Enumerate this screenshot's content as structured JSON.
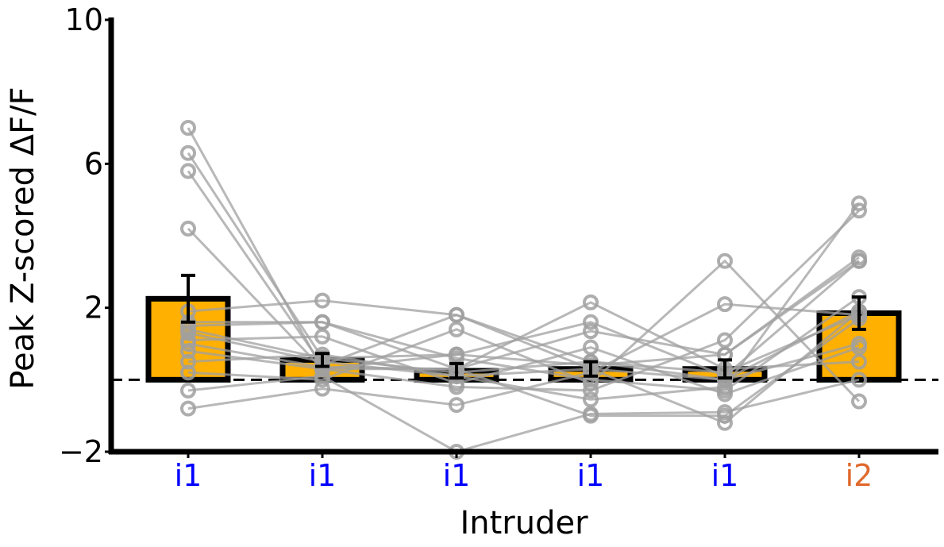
{
  "chart_data": {
    "type": "bar",
    "xlabel": "Intruder",
    "ylabel": "Peak Z-scored ΔF/F",
    "ylim": [
      -2,
      10
    ],
    "yticks": [
      -2,
      2,
      6,
      10
    ],
    "ytick_labels": [
      "−2",
      "2",
      "6",
      "10"
    ],
    "categories": [
      "i1",
      "i1",
      "i1",
      "i1",
      "i1",
      "i2"
    ],
    "category_colors": [
      "#0000ff",
      "#0000ff",
      "#0000ff",
      "#0000ff",
      "#0000ff",
      "#e0682c"
    ],
    "bar_color": "#ffb000",
    "bar_edge_color": "#000000",
    "baseline": 0,
    "baseline_style": "dashed",
    "individual_color": "#a0a0a0",
    "grid": false,
    "legend": "none",
    "values": [
      2.25,
      0.55,
      0.25,
      0.3,
      0.3,
      1.85
    ],
    "errors": [
      0.65,
      0.18,
      0.2,
      0.2,
      0.25,
      0.45
    ],
    "individuals": [
      [
        7.0,
        0.3,
        0.3,
        2.15,
        0.3,
        0.5
      ],
      [
        6.3,
        0.6,
        0.2,
        0.5,
        0.2,
        1.8
      ],
      [
        5.8,
        0.4,
        1.8,
        0.3,
        0.0,
        1.9
      ],
      [
        4.2,
        0.3,
        0.7,
        1.6,
        0.1,
        3.3
      ],
      [
        1.9,
        2.2,
        1.8,
        0.5,
        0.0,
        1.0
      ],
      [
        1.6,
        1.6,
        0.6,
        0.0,
        -0.3,
        2.3
      ],
      [
        1.5,
        1.6,
        0.3,
        1.35,
        0.7,
        3.4
      ],
      [
        1.1,
        1.2,
        -0.1,
        0.9,
        -0.4,
        0.9
      ],
      [
        0.8,
        0.3,
        -0.2,
        -0.3,
        1.1,
        4.7
      ],
      [
        0.2,
        0.0,
        1.4,
        -0.1,
        3.3,
        -0.6
      ],
      [
        -0.3,
        0.1,
        -2.0,
        -0.95,
        -0.9,
        0.0
      ],
      [
        -0.8,
        -0.25,
        -0.7,
        0.2,
        2.1,
        1.8
      ],
      [
        1.3,
        0.5,
        0.1,
        -0.55,
        -0.2,
        4.9
      ],
      [
        0.5,
        0.7,
        0.1,
        0.3,
        -1.2,
        1.9
      ],
      [
        1.4,
        0.6,
        0.7,
        0.4,
        0.7,
        3.3
      ],
      [
        1.0,
        0.35,
        0.3,
        -1.0,
        -1.0,
        1.7
      ]
    ]
  }
}
